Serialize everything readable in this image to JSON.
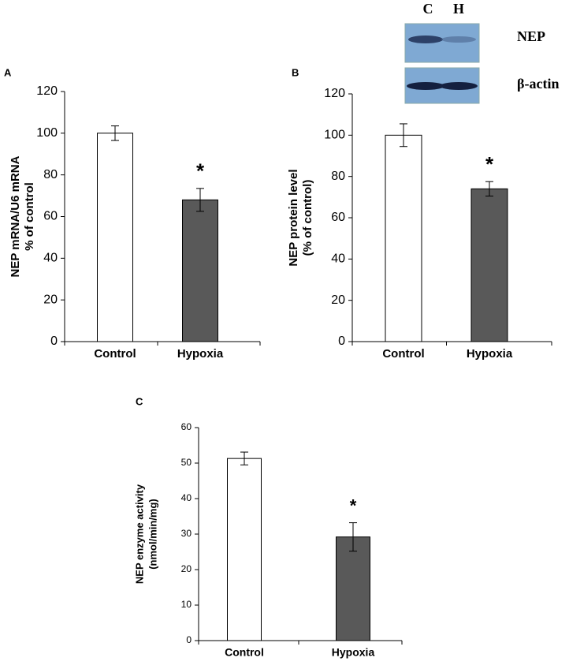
{
  "blot": {
    "lanes": [
      "C",
      "H"
    ],
    "rows": [
      "NEP",
      "β-actin"
    ]
  },
  "chart_data": [
    {
      "type": "bar",
      "panel": "A",
      "categories": [
        "Control",
        "Hypoxia"
      ],
      "values": [
        100,
        68
      ],
      "errors": [
        3.5,
        5.5
      ],
      "colors": [
        "#ffffff",
        "#595959"
      ],
      "ylabel": [
        "NEP mRNA/U6 mRNA",
        "% of control"
      ],
      "ylim": [
        0,
        120
      ],
      "yticks": [
        0,
        20,
        40,
        60,
        80,
        100,
        120
      ],
      "grid": false,
      "annotations": [
        {
          "text": "*",
          "x": "Hypoxia"
        }
      ]
    },
    {
      "type": "bar",
      "panel": "B",
      "categories": [
        "Control",
        "Hypoxia"
      ],
      "values": [
        100,
        74
      ],
      "errors": [
        5.5,
        3.5
      ],
      "colors": [
        "#ffffff",
        "#595959"
      ],
      "ylabel": [
        "NEP protein level",
        "(% of control)"
      ],
      "ylim": [
        0,
        120
      ],
      "yticks": [
        0,
        20,
        40,
        60,
        80,
        100,
        120
      ],
      "grid": false,
      "annotations": [
        {
          "text": "*",
          "x": "Hypoxia"
        }
      ]
    },
    {
      "type": "bar",
      "panel": "C",
      "categories": [
        "Control",
        "Hypoxia"
      ],
      "values": [
        51.3,
        29.2
      ],
      "errors": [
        1.8,
        4
      ],
      "colors": [
        "#ffffff",
        "#595959"
      ],
      "ylabel": [
        "NEP enzyme activity",
        "(nmol/min/mg)"
      ],
      "ylim": [
        0,
        60
      ],
      "yticks": [
        0,
        10,
        20,
        30,
        40,
        50,
        60
      ],
      "grid": false,
      "annotations": [
        {
          "text": "*",
          "x": "Hypoxia"
        }
      ]
    }
  ]
}
